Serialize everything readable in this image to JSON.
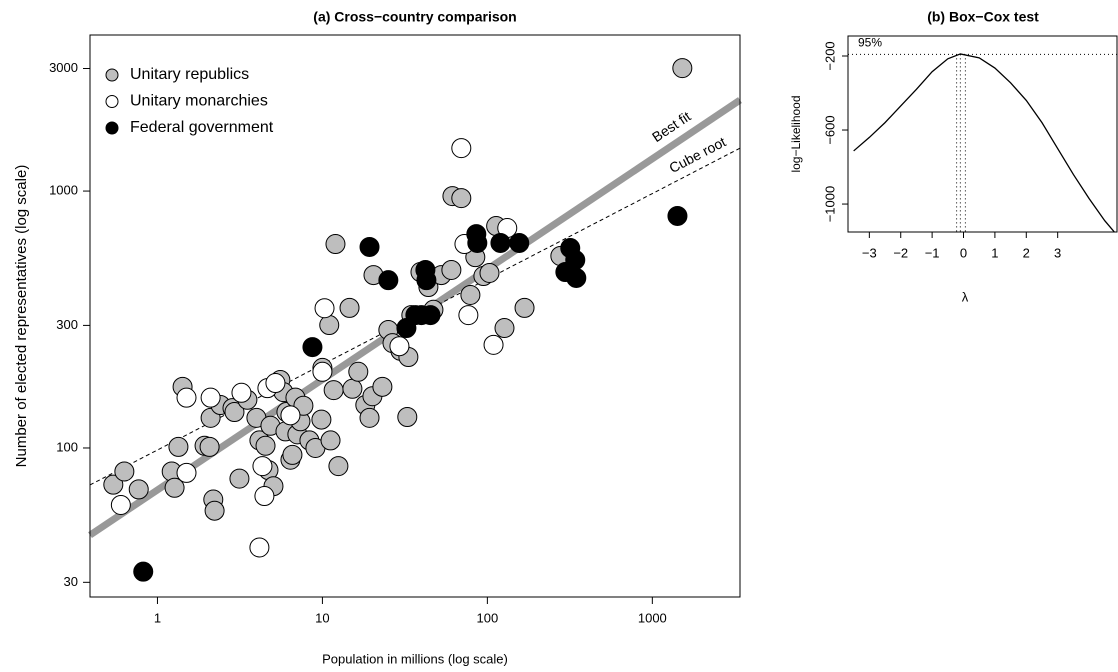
{
  "chart_data": [
    {
      "type": "scatter",
      "title": "(a) Cross−country comparison",
      "xlabel": "Population in millions (log scale)",
      "ylabel": "Number of elected representatives (log scale)",
      "xlog": true,
      "ylog": true,
      "xlim": [
        0.39,
        3400
      ],
      "ylim": [
        26.3,
        4050
      ],
      "xticks": [
        1,
        10,
        100,
        1000
      ],
      "yticks": [
        30,
        100,
        300,
        1000,
        3000
      ],
      "legend": "top-left",
      "series": [
        {
          "name": "Unitary republics",
          "color": "#bebebe",
          "x": [
            0.54,
            0.63,
            0.77,
            1.22,
            1.27,
            1.34,
            1.42,
            1.93,
            2.07,
            2.1,
            2.18,
            2.22,
            2.41,
            2.85,
            2.93,
            3.14,
            3.51,
            3.98,
            4.15,
            4.52,
            4.71,
            4.84,
            5.05,
            5.56,
            5.8,
            5.97,
            6.05,
            6.4,
            6.58,
            6.86,
            7.05,
            7.36,
            7.67,
            8.34,
            9.07,
            9.86,
            10,
            11,
            11.2,
            11.7,
            12,
            12.5,
            14.6,
            15.2,
            16.5,
            18.2,
            19.3,
            20.1,
            20.4,
            23.1,
            25.1,
            26.6,
            29.7,
            33.2,
            34.6,
            39.3,
            43.9,
            47.1,
            52.6,
            60.5,
            61.4,
            69.5,
            78.9,
            84.5,
            94.6,
            103,
            113,
            127,
            168,
            277,
            1520,
            32.7
          ],
          "values": [
            72,
            81,
            69,
            81,
            70,
            101,
            173,
            102,
            101,
            131,
            63,
            57,
            147,
            143,
            138,
            76,
            154,
            131,
            107,
            102,
            82,
            122,
            71,
            184,
            165,
            116,
            138,
            90,
            94,
            157,
            113,
            127,
            146,
            107,
            100,
            129,
            205,
            301,
            107,
            168,
            622,
            85,
            351,
            170,
            198,
            147,
            131,
            159,
            471,
            173,
            288,
            256,
            239,
            226,
            329,
            484,
            423,
            345,
            471,
            493,
            956,
            939,
            394,
            553,
            467,
            480,
            731,
            293,
            351,
            559,
            3010,
            132
          ]
        },
        {
          "name": "Unitary monarchies",
          "color": "#ffffff",
          "x": [
            0.6,
            1.5,
            2.1,
            4.15,
            4.33,
            4.45,
            4.64,
            5.19,
            6.4,
            10,
            10.3,
            29.3,
            69.5,
            72.6,
            76.7,
            109,
            132,
            1.5,
            3.23
          ],
          "values": [
            60,
            80,
            157,
            41,
            85,
            65,
            171,
            179,
            134,
            198,
            350,
            249,
            1470,
            622,
            329,
            252,
            718,
            157,
            164
          ]
        },
        {
          "name": "Federal government",
          "color": "#000000",
          "x": [
            0.82,
            8.7,
            19.3,
            25.1,
            32.3,
            36.6,
            39.8,
            42.1,
            45.2,
            42.7,
            85.7,
            86.9,
            120,
            156,
            297,
            318,
            341,
            346,
            1420
          ],
          "values": [
            33,
            247,
            606,
            450,
            293,
            329,
            329,
            493,
            329,
            450,
            680,
            628,
            628,
            628,
            484,
            600,
            539,
            459,
            800
          ]
        }
      ],
      "lines": [
        {
          "name": "Best fit",
          "color": "#999999",
          "x": [
            0.39,
            3400
          ],
          "values": [
            45.8,
            2260
          ]
        },
        {
          "name": "Cube root",
          "color": "#000000",
          "x": [
            0.39,
            3400
          ],
          "values": [
            71.8,
            1469
          ]
        }
      ]
    },
    {
      "type": "line",
      "title": "(b) Box−Cox test",
      "xlabel": "λ",
      "ylabel": "log−Likelihood",
      "xlim": [
        -3.68,
        4.89
      ],
      "ylim": [
        -1151,
        -92
      ],
      "xticks": [
        {
          "value": -3,
          "label": "−3"
        },
        {
          "value": -2,
          "label": "−2"
        },
        {
          "value": -1,
          "label": "−1"
        },
        0,
        1,
        2,
        3
      ],
      "yticks": [
        {
          "value": -200,
          "label": "−200"
        },
        {
          "value": -600,
          "label": "−600"
        },
        {
          "value": -1000,
          "label": "−1000"
        }
      ],
      "x": [
        -3.5,
        -3,
        -2.5,
        -2,
        -1.5,
        -1,
        -0.5,
        -0.1,
        0.5,
        1,
        1.5,
        2,
        2.5,
        3,
        3.5,
        4,
        4.5,
        4.8
      ],
      "values": [
        -713,
        -640,
        -560,
        -470,
        -380,
        -285,
        -215,
        -189,
        -210,
        -265,
        -345,
        -440,
        -560,
        -700,
        -840,
        -970,
        -1090,
        -1150
      ],
      "color": "#000000",
      "ci_label": "95%",
      "ci_level": -191,
      "ci": [
        -0.22,
        0.06
      ],
      "lambda_hat": -0.1
    }
  ]
}
